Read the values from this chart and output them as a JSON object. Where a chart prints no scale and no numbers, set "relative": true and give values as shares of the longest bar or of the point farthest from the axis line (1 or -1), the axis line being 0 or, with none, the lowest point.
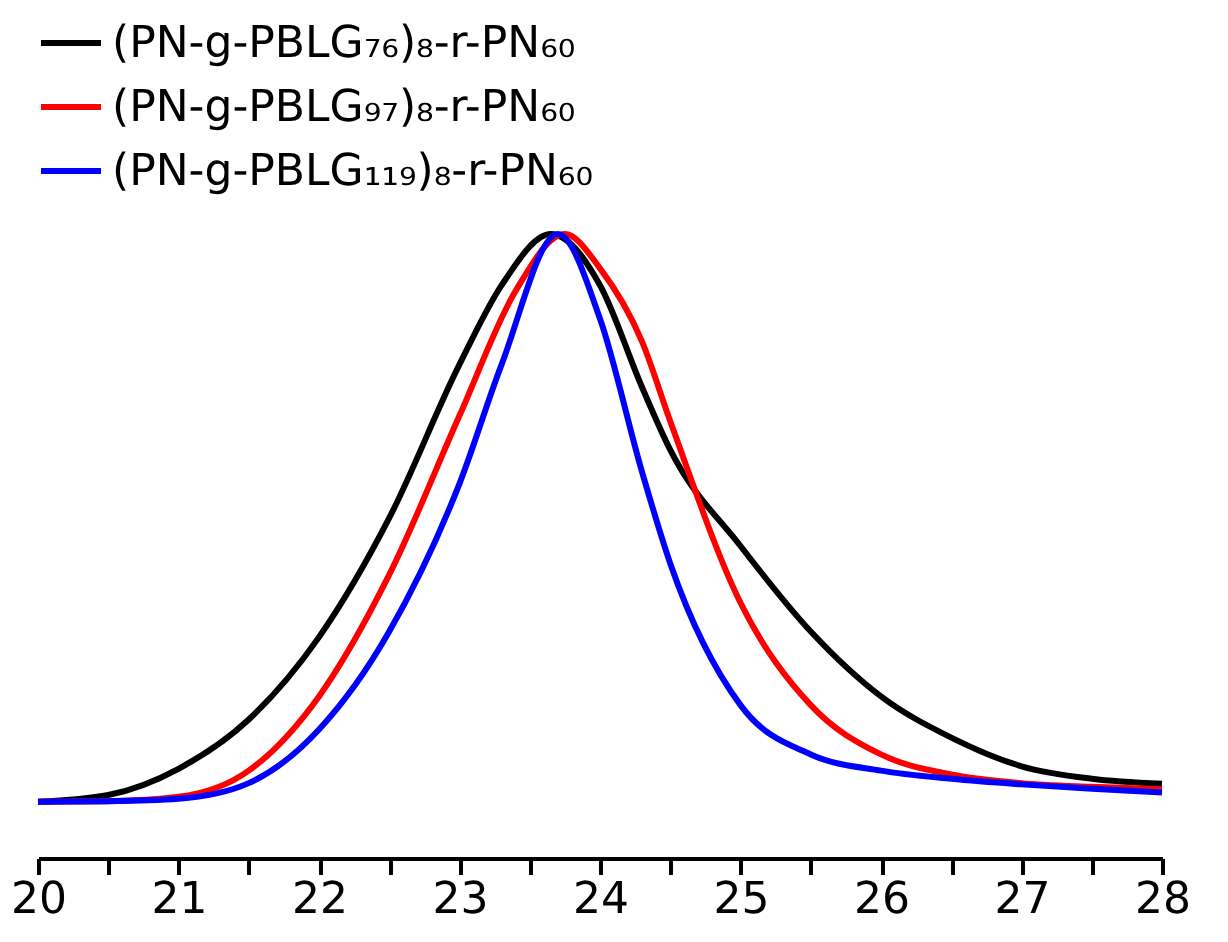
{
  "chart_data": {
    "type": "line",
    "relative": true,
    "x": [
      20,
      20.5,
      21,
      21.5,
      22,
      22.5,
      23,
      23.3,
      23.65,
      24,
      24.3,
      24.5,
      25,
      25.5,
      26,
      26.5,
      27,
      27.5,
      28
    ],
    "series": [
      {
        "name": "(PN-g-PBLG₇₆)₈-r-PN₆₀",
        "color": "#000000",
        "values": [
          0.09,
          0.101,
          0.143,
          0.222,
          0.354,
          0.545,
          0.791,
          0.918,
          1.0,
          0.918,
          0.754,
          0.654,
          0.5,
          0.363,
          0.259,
          0.193,
          0.147,
          0.127,
          0.119
        ]
      },
      {
        "name": "(PN-g-PBLG₉₇)₈-r-PN₆₀",
        "color": "#ff0000",
        "x": [
          20,
          20.5,
          21,
          21.5,
          22,
          22.5,
          23,
          23.4,
          23.75,
          24,
          24.3,
          24.5,
          25,
          25.5,
          26,
          26.5,
          27,
          27.5,
          28
        ],
        "values": [
          0.09,
          0.091,
          0.098,
          0.14,
          0.259,
          0.454,
          0.709,
          0.909,
          1.0,
          0.945,
          0.827,
          0.7,
          0.409,
          0.245,
          0.166,
          0.134,
          0.12,
          0.114,
          0.11
        ]
      },
      {
        "name": "(PN-g-PBLG₁₁₉)₈-r-PN₆₀",
        "color": "#0000ff",
        "x": [
          20,
          20.5,
          21,
          21.5,
          22,
          22.5,
          23,
          23.3,
          23.7,
          24,
          24.3,
          24.5,
          25,
          25.5,
          26,
          26.5,
          27,
          27.5,
          28
        ],
        "values": [
          0.09,
          0.091,
          0.095,
          0.12,
          0.206,
          0.363,
          0.6,
          0.791,
          1.0,
          0.864,
          0.618,
          0.472,
          0.245,
          0.166,
          0.14,
          0.127,
          0.118,
          0.111,
          0.105
        ]
      }
    ],
    "xlim": [
      20,
      28
    ],
    "xticks": [
      20,
      {
        "value": 20.5,
        "label": null
      },
      21,
      {
        "value": 21.5,
        "label": null
      },
      22,
      {
        "value": 22.5,
        "label": null
      },
      23,
      {
        "value": 23.5,
        "label": null
      },
      24,
      {
        "value": 24.5,
        "label": null
      },
      25,
      {
        "value": 25.5,
        "label": null
      },
      26,
      {
        "value": 26.5,
        "label": null
      },
      27,
      {
        "value": 27.5,
        "label": null
      },
      28
    ],
    "tick_labels": "x",
    "legend": "top",
    "grid": false,
    "marker": "none",
    "line_style": "solid"
  }
}
